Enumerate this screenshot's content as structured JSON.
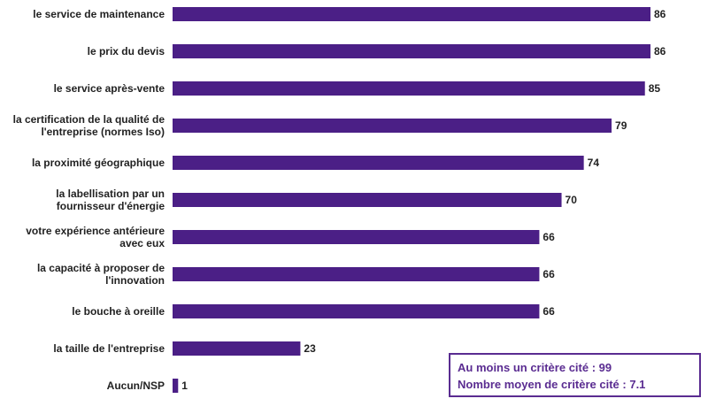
{
  "chart_data": {
    "type": "bar",
    "orientation": "horizontal",
    "title": "",
    "xlabel": "",
    "ylabel": "",
    "categories": [
      [
        "le service de maintenance"
      ],
      [
        "le prix du devis"
      ],
      [
        "le service après-vente"
      ],
      [
        "la certification de la qualité de",
        "l'entreprise (normes Iso)"
      ],
      [
        "la proximité géographique"
      ],
      [
        "la labellisation par un",
        "fournisseur d'énergie"
      ],
      [
        "votre expérience antérieure",
        "avec eux"
      ],
      [
        "la capacité à proposer de",
        "l'innovation"
      ],
      [
        "le bouche à oreille"
      ],
      [
        "la taille de l'entreprise"
      ],
      [
        "Aucun/NSP"
      ]
    ],
    "values": [
      86,
      86,
      85,
      79,
      74,
      70,
      66,
      66,
      66,
      23,
      1
    ],
    "xlim": [
      0,
      86
    ],
    "grid": false,
    "data_labels": true,
    "bar_color": "#4b1f86"
  },
  "summary": {
    "line1": "Au moins un critère cité : 99",
    "line2": "Nombre moyen de critère cité : 7.1",
    "color": "#5a2c91"
  }
}
